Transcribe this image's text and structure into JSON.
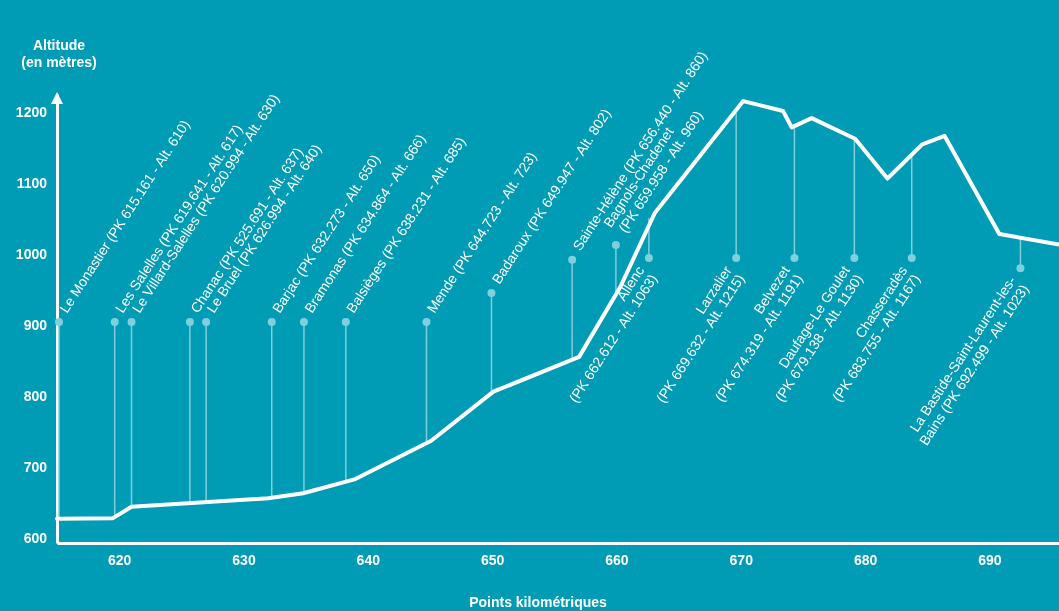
{
  "chart_data": {
    "type": "line",
    "xlabel": "Points kilométriques",
    "ylabel": "Altitude\n(en mètres)",
    "xlim": [
      615,
      695.6
    ],
    "ylim": [
      593,
      1225
    ],
    "xticks": [
      620,
      630,
      640,
      650,
      660,
      670,
      680,
      690
    ],
    "yticks": [
      600,
      700,
      800,
      900,
      1000,
      1100,
      1200
    ],
    "grid": false,
    "marker": "none",
    "line_style": "solid",
    "series": [
      {
        "color": "#ffffff",
        "x": [
          615,
          619.5,
          621,
          632,
          634.8,
          639,
          645.1,
          650.1,
          657,
          660.3,
          663.1,
          670.2,
          673.4,
          674.1,
          675.7,
          679.2,
          681.8,
          684.6,
          686.4,
          690.8,
          695.6
        ],
        "values": [
          627,
          628,
          644,
          656,
          663,
          683,
          737,
          806,
          855,
          953,
          1058,
          1215,
          1201,
          1178,
          1191,
          1162,
          1106,
          1154,
          1166,
          1028,
          1013
        ]
      }
    ],
    "annotations": [
      {
        "text": "Le Monastier (PK 615.161 - Alt. 610)",
        "x": 615.161,
        "y": 627
      },
      {
        "text": "Les Salelles (PK 619.641 - Alt. 617)",
        "x": 619.641,
        "y": 628
      },
      {
        "text": "Le Villard-Salelles (PK 620.994 - Alt. 630)",
        "x": 620.994,
        "y": 643
      },
      {
        "text": "Chanac (PK 525.691 - Alt. 637)",
        "x": 625.691,
        "y": 649
      },
      {
        "text": "Le Bruel (PK 626.994 - Alt. 640)",
        "x": 626.994,
        "y": 650
      },
      {
        "text": "Barjac (PK 632.273 - Alt. 650)",
        "x": 632.273,
        "y": 656
      },
      {
        "text": "Bramonas (PK 634.864 - Alt. 666)",
        "x": 634.864,
        "y": 663
      },
      {
        "text": "Balsièges (PK 638.231 - Alt. 685)",
        "x": 638.231,
        "y": 679
      },
      {
        "text": "Mende (PK 644.723 - Alt. 723)",
        "x": 644.723,
        "y": 734
      },
      {
        "text": "Badaroux (PK 649.947 - Alt. 802)",
        "x": 649.947,
        "y": 804
      },
      {
        "text": "Sainte-Hélène (PK 656.440 - Alt. 860)",
        "x": 656.44,
        "y": 851
      },
      {
        "text": "Bagnols-Chadenet\n(PK 659.958 - Alt. 960)",
        "x": 659.958,
        "y": 944
      },
      {
        "text": "Allenc\n(PK 662.612 - Alt. 1063)",
        "x": 662.612,
        "y": 1050
      },
      {
        "text": "Larzalier\n(PK 669.632 - Alt. 1215)",
        "x": 669.632,
        "y": 1198
      },
      {
        "text": "Belvezet\n(PK 674.319 - Alt. 1191)",
        "x": 674.319,
        "y": 1182
      },
      {
        "text": "Daufage-Le Goulet\n(PK 679.138 - Alt. 1130)",
        "x": 679.138,
        "y": 1161
      },
      {
        "text": "Chasseradès\n(PK 683.755 - Alt. 1167)",
        "x": 683.755,
        "y": 1140
      },
      {
        "text": "La Bastide-Saint-Laurent-les-\nBains (PK 692.499 - Alt. 1023)",
        "x": 692.499,
        "y": 1022
      }
    ]
  }
}
